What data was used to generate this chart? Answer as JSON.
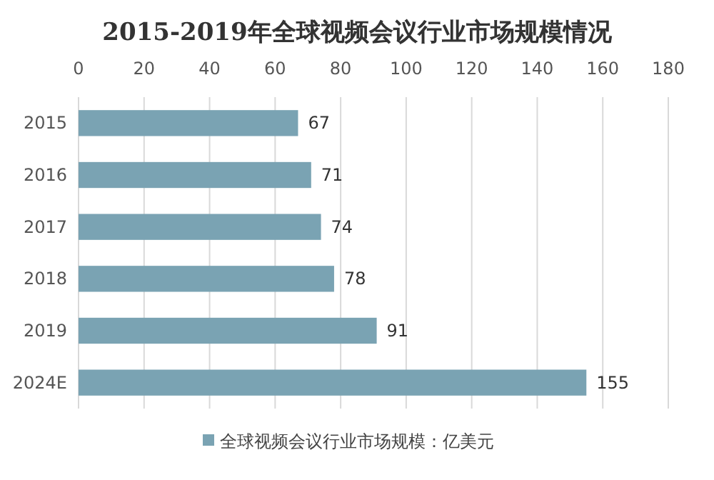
{
  "chart_data": {
    "type": "bar",
    "orientation": "horizontal",
    "title": "2015-2019年全球视频会议行业市场规模情况",
    "categories": [
      "2015",
      "2016",
      "2017",
      "2018",
      "2019",
      "2024E"
    ],
    "series": [
      {
        "name": "全球视频会议行业市场规模：亿美元",
        "color": "#7aa3b3",
        "values": [
          67,
          71,
          74,
          78,
          91,
          155
        ]
      }
    ],
    "xlim": [
      0,
      180
    ],
    "xticks": [
      0,
      20,
      40,
      60,
      80,
      100,
      120,
      140,
      160,
      180
    ],
    "grid": "x",
    "legend": "bottom",
    "data_labels": true
  }
}
